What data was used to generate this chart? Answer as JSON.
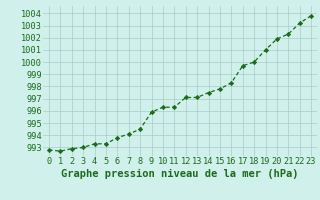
{
  "x": [
    0,
    1,
    2,
    3,
    4,
    5,
    6,
    7,
    8,
    9,
    10,
    11,
    12,
    13,
    14,
    15,
    16,
    17,
    18,
    19,
    20,
    21,
    22,
    23
  ],
  "y": [
    992.8,
    992.7,
    992.9,
    993.0,
    993.3,
    993.3,
    993.8,
    994.1,
    994.5,
    995.9,
    996.3,
    996.3,
    997.1,
    997.1,
    997.5,
    997.8,
    998.3,
    999.7,
    1000.0,
    1001.0,
    1001.9,
    1002.3,
    1003.2,
    1003.8
  ],
  "line_color": "#1a6b1a",
  "marker": "D",
  "marker_size": 2.2,
  "bg_color": "#cff0eb",
  "grid_color": "#aaccc8",
  "xlabel": "Graphe pression niveau de la mer (hPa)",
  "xlabel_fontsize": 7.5,
  "ylabel_ticks": [
    993,
    994,
    995,
    996,
    997,
    998,
    999,
    1000,
    1001,
    1002,
    1003,
    1004
  ],
  "ylim": [
    992.3,
    1004.6
  ],
  "xlim": [
    -0.5,
    23.5
  ],
  "tick_color": "#1a6b1a",
  "tick_fontsize": 6.2,
  "line_width": 0.9
}
